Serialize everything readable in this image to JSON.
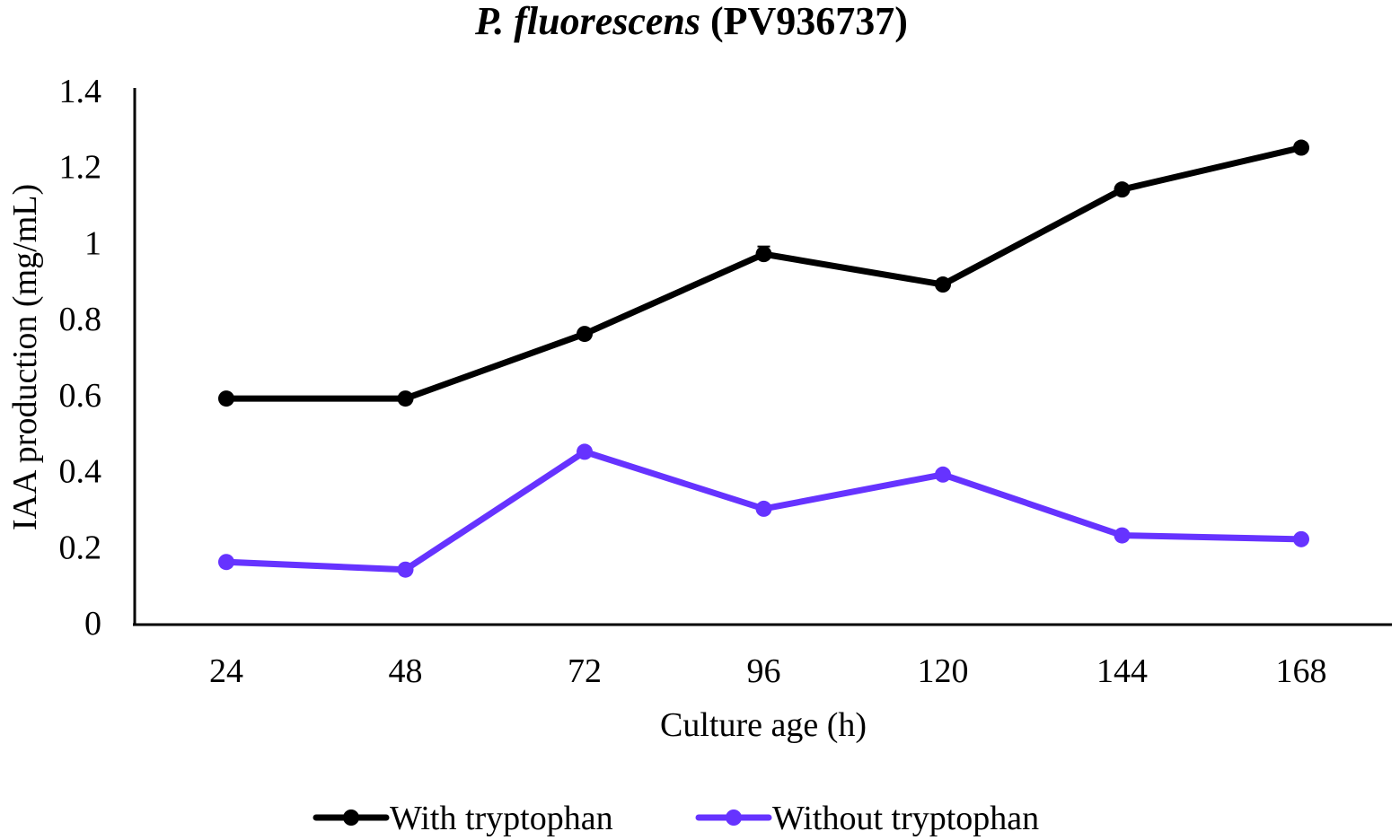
{
  "chart_data": {
    "type": "line",
    "title_italic": "P. fluorescens",
    "title_rest": " (PV936737)",
    "title": "P. fluorescens (PV936737)",
    "xlabel": "Culture age (h)",
    "ylabel": "IAA production (mg/mL)",
    "categories": [
      "24",
      "48",
      "72",
      "96",
      "120",
      "144",
      "168"
    ],
    "ylim": [
      0,
      1.4
    ],
    "yticks": [
      "0",
      "0.2",
      "0.4",
      "0.6",
      "0.8",
      "1",
      "1.2",
      "1.4"
    ],
    "grid": false,
    "legend_position": "bottom",
    "series": [
      {
        "name": "With tryptophan",
        "color": "#000000",
        "values": [
          0.59,
          0.59,
          0.76,
          0.97,
          0.89,
          1.14,
          1.25
        ],
        "errors": [
          0.005,
          0.005,
          0.005,
          0.02,
          0.005,
          0.005,
          0.005
        ]
      },
      {
        "name": "Without tryptophan",
        "color": "#6633ff",
        "values": [
          0.16,
          0.14,
          0.45,
          0.3,
          0.39,
          0.23,
          0.22
        ],
        "errors": [
          0.005,
          0.005,
          0.005,
          0.005,
          0.005,
          0.005,
          0.005
        ]
      }
    ]
  }
}
